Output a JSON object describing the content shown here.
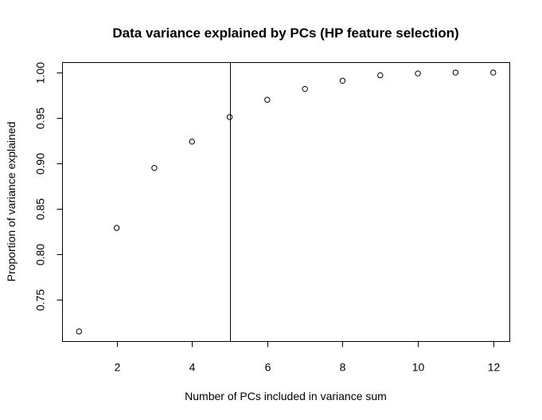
{
  "chart_data": {
    "type": "scatter",
    "title": "Data variance explained by PCs (HP feature selection)",
    "xlabel": "Number of PCs included in variance sum",
    "ylabel": "Proportion of variance explained",
    "x": [
      1,
      2,
      3,
      4,
      5,
      6,
      7,
      8,
      9,
      10,
      11,
      12
    ],
    "y": [
      0.715,
      0.829,
      0.895,
      0.924,
      0.951,
      0.97,
      0.982,
      0.991,
      0.997,
      0.999,
      1.0,
      1.0
    ],
    "xlim": [
      0.56,
      12.44
    ],
    "ylim": [
      0.704,
      1.011
    ],
    "xticks": [
      2,
      4,
      6,
      8,
      10,
      12
    ],
    "yticks": [
      0.75,
      0.8,
      0.85,
      0.9,
      0.95,
      1.0
    ],
    "xtick_labels": [
      "2",
      "4",
      "6",
      "8",
      "10",
      "12"
    ],
    "ytick_labels": [
      "0.75",
      "0.80",
      "0.85",
      "0.90",
      "0.95",
      "1.00"
    ],
    "vertical_line_x": 5,
    "marker": "open-circle",
    "grid": false,
    "legend": "none"
  }
}
